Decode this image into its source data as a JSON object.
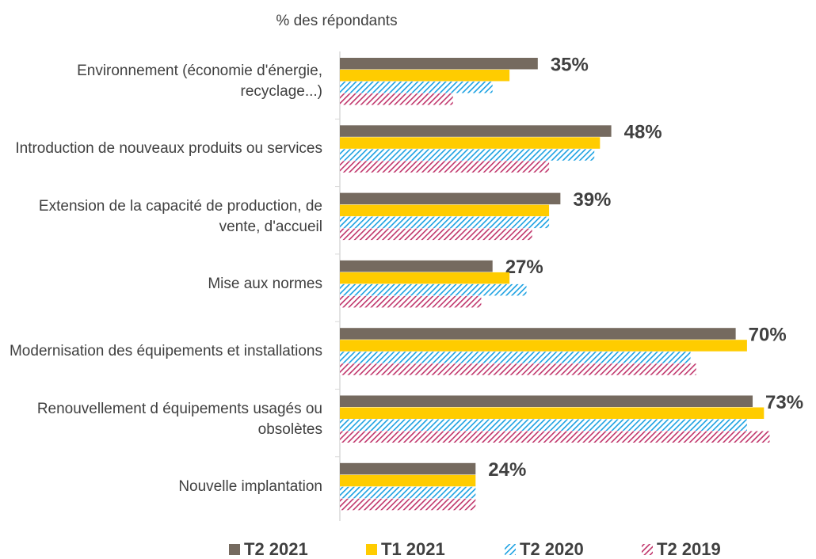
{
  "chart_data": {
    "type": "hbar",
    "title": "% des répondants",
    "categories": [
      "Environnement (économie d'énergie, recyclage...)",
      "Introduction de nouveaux produits ou services",
      "Extension de la capacité de production, de vente, d'accueil",
      "Mise aux normes",
      "Modernisation des équipements et installations",
      "Renouvellement d équipements usagés ou obsolètes",
      "Nouvelle implantation"
    ],
    "xlim": [
      0,
      80
    ],
    "series": [
      {
        "name": "T2 2021",
        "color": "#756a5f",
        "hatch": false,
        "values": [
          35,
          48,
          39,
          27,
          70,
          73,
          24
        ],
        "value_labels": [
          "35%",
          "48%",
          "39%",
          "27%",
          "70%",
          "73%",
          "24%"
        ]
      },
      {
        "name": "T1 2021",
        "color": "#ffcc00",
        "hatch": false,
        "values": [
          30,
          46,
          37,
          30,
          72,
          75,
          24
        ]
      },
      {
        "name": "T2 2020",
        "color": "#1ba1e2",
        "hatch": true,
        "values": [
          27,
          45,
          37,
          33,
          62,
          72,
          24
        ]
      },
      {
        "name": "T2 2019",
        "color": "#c0356b",
        "hatch": true,
        "values": [
          20,
          37,
          34,
          25,
          63,
          76,
          24
        ]
      }
    ]
  }
}
